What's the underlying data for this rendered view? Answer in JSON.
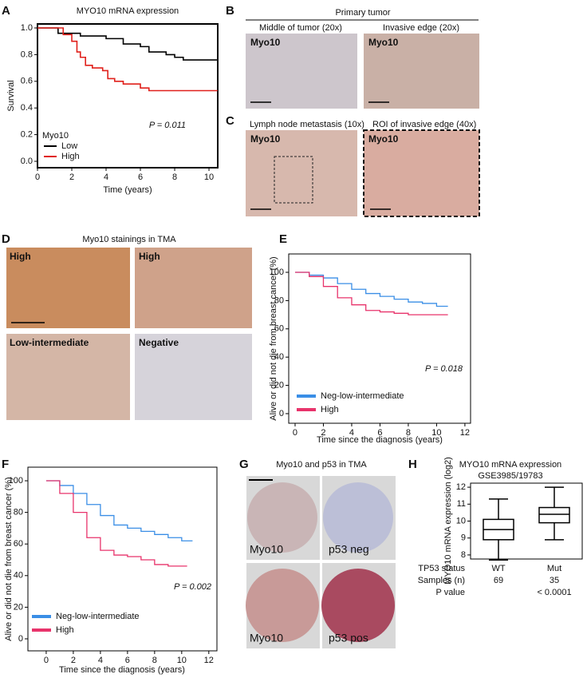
{
  "panel_letters": [
    "A",
    "B",
    "C",
    "D",
    "E",
    "F",
    "G",
    "H"
  ],
  "panels": {
    "b": {
      "title": "Primary tumor",
      "captions": [
        "Middle of tumor (20x)",
        "Invasive edge (20x)"
      ],
      "labels": [
        "Myo10",
        "Myo10"
      ]
    },
    "c": {
      "captions": [
        "Lymph node metastasis (10x)",
        "ROI of invasive edge (40x)"
      ],
      "labels": [
        "Myo10",
        "Myo10"
      ]
    },
    "d": {
      "title": "Myo10 stainings in TMA",
      "labels": [
        "High",
        "High",
        "Low-intermediate",
        "Negative"
      ]
    },
    "g": {
      "title": "Myo10 and p53 in TMA",
      "labels": [
        "Myo10",
        "p53 neg",
        "Myo10",
        "p53 pos"
      ]
    }
  },
  "chart_data": [
    {
      "type": "line",
      "step": true,
      "title": "MYO10 mRNA expression",
      "xlabel": "Time (years)",
      "ylabel": "Survival",
      "xlim": [
        0,
        10.51
      ],
      "ylim": [
        -0.048,
        1.03
      ],
      "xticks": [
        0,
        2,
        4,
        6,
        8,
        10
      ],
      "yticks": [
        {
          "value": 0,
          "label": "0.0"
        },
        {
          "value": 0.2,
          "label": "0.2"
        },
        {
          "value": 0.4,
          "label": "0.4"
        },
        {
          "value": 0.6,
          "label": "0.6"
        },
        {
          "value": 0.8,
          "label": "0.8"
        },
        {
          "value": 1,
          "label": "1.0"
        }
      ],
      "legend_title": "Myo10",
      "legend": "lower left",
      "annotation": "P = 0.011",
      "series": [
        {
          "name": "Low",
          "color": "#000000",
          "x": [
            0,
            1.2,
            2.5,
            4,
            5,
            6,
            6.5,
            7.5,
            8,
            8.5,
            10.5
          ],
          "values": [
            1.0,
            0.96,
            0.94,
            0.92,
            0.88,
            0.86,
            0.82,
            0.8,
            0.78,
            0.76,
            0.76
          ]
        },
        {
          "name": "High",
          "color": "#e0201b",
          "x": [
            0,
            1.5,
            2,
            2.3,
            2.5,
            2.8,
            3.2,
            3.8,
            4.1,
            4.5,
            5,
            6,
            6.5,
            10.5
          ],
          "values": [
            1.0,
            0.95,
            0.9,
            0.82,
            0.78,
            0.72,
            0.7,
            0.68,
            0.62,
            0.6,
            0.58,
            0.55,
            0.53,
            0.53
          ]
        }
      ]
    },
    {
      "type": "line",
      "step": true,
      "xlabel": "Time since the diagnosis (years)",
      "ylabel": "Alive or did not die from breast cancer (%)",
      "xlim": [
        -0.45,
        12.4
      ],
      "ylim": [
        -6.8,
        113
      ],
      "xticks": [
        0,
        2,
        4,
        6,
        8,
        10,
        12
      ],
      "yticks": [
        0,
        20,
        40,
        60,
        80,
        100
      ],
      "legend": "lower left",
      "annotation": "P = 0.018",
      "series": [
        {
          "name": "Neg-low-intermediate",
          "color": "#3a8ee6",
          "x": [
            0,
            1,
            2,
            3,
            4,
            5,
            6,
            7,
            8,
            9,
            10,
            10.8
          ],
          "values": [
            100,
            98,
            96,
            92,
            88,
            85,
            83,
            81,
            79,
            78,
            76,
            76
          ]
        },
        {
          "name": "High",
          "color": "#e8336b",
          "x": [
            0,
            1,
            2,
            3,
            4,
            5,
            6,
            7,
            8,
            9,
            10.8
          ],
          "values": [
            100,
            97,
            90,
            82,
            77,
            73,
            72,
            71,
            70,
            70,
            70
          ]
        }
      ]
    },
    {
      "type": "line",
      "step": true,
      "xlabel": "Time since the diagnosis (years)",
      "ylabel": "Alive or did not die from breast cancer (%)",
      "xlim": [
        -1.35,
        12.6
      ],
      "ylim": [
        -7.6,
        108.6
      ],
      "xticks": [
        0,
        2,
        4,
        6,
        8,
        10,
        12
      ],
      "yticks": [
        0,
        20,
        40,
        60,
        80,
        100
      ],
      "legend": "lower left",
      "annotation": "P = 0.002",
      "series": [
        {
          "name": "Neg-low-intermediate",
          "color": "#3a8ee6",
          "x": [
            0,
            1,
            2,
            3,
            4,
            5,
            6,
            7,
            8,
            9,
            10,
            10.8
          ],
          "values": [
            100,
            97,
            92,
            85,
            78,
            72,
            70,
            68,
            66,
            64,
            62,
            62
          ]
        },
        {
          "name": "High",
          "color": "#e8336b",
          "x": [
            0,
            1,
            2,
            3,
            4,
            5,
            6,
            7,
            8,
            9,
            10.4
          ],
          "values": [
            100,
            92,
            80,
            64,
            56,
            53,
            52,
            50,
            47,
            46,
            46
          ]
        }
      ]
    },
    {
      "type": "box",
      "title": "MYO10 mRNA expression",
      "subtitle": "GSE3985/19783",
      "ylabel": "MYO10 mRNA expression (log2)",
      "ylim": [
        7.76,
        12.24
      ],
      "yticks": [
        8,
        9,
        10,
        11,
        12
      ],
      "categories": [
        "WT",
        "Mut"
      ],
      "boxes": [
        {
          "whislo": 7.7,
          "q1": 8.9,
          "med": 9.5,
          "q3": 10.1,
          "whishi": 11.3
        },
        {
          "whislo": 8.9,
          "q1": 9.9,
          "med": 10.4,
          "q3": 10.8,
          "whishi": 12.0
        }
      ],
      "row_labels": [
        "TP53 status",
        "Samples (n)",
        "P value"
      ],
      "samples": [
        69,
        35
      ],
      "p_value": "< 0.0001"
    }
  ]
}
